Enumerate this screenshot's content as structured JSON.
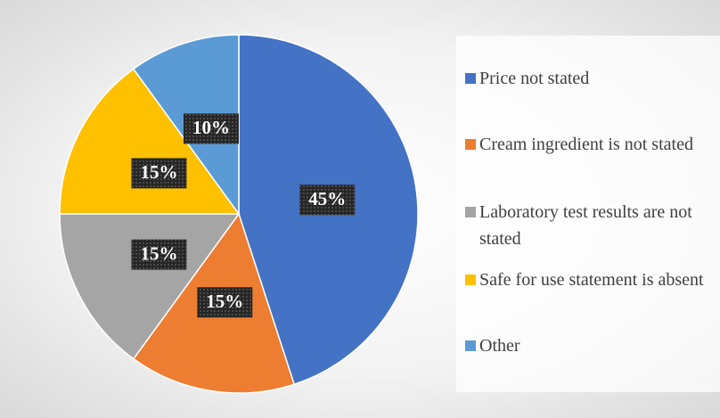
{
  "chart_data": {
    "type": "pie",
    "categories": [
      "Price not stated",
      "Cream ingredient is not stated",
      "Laboratory test results are not stated",
      "Safe for use statement is absent",
      "Other"
    ],
    "values": [
      45,
      15,
      15,
      15,
      10
    ],
    "value_labels": [
      "45%",
      "15%",
      "15%",
      "15%",
      "10%"
    ],
    "colors": [
      "#4472c4",
      "#ed7d31",
      "#a5a5a5",
      "#ffc000",
      "#5b9bd5"
    ],
    "legend": "right"
  }
}
